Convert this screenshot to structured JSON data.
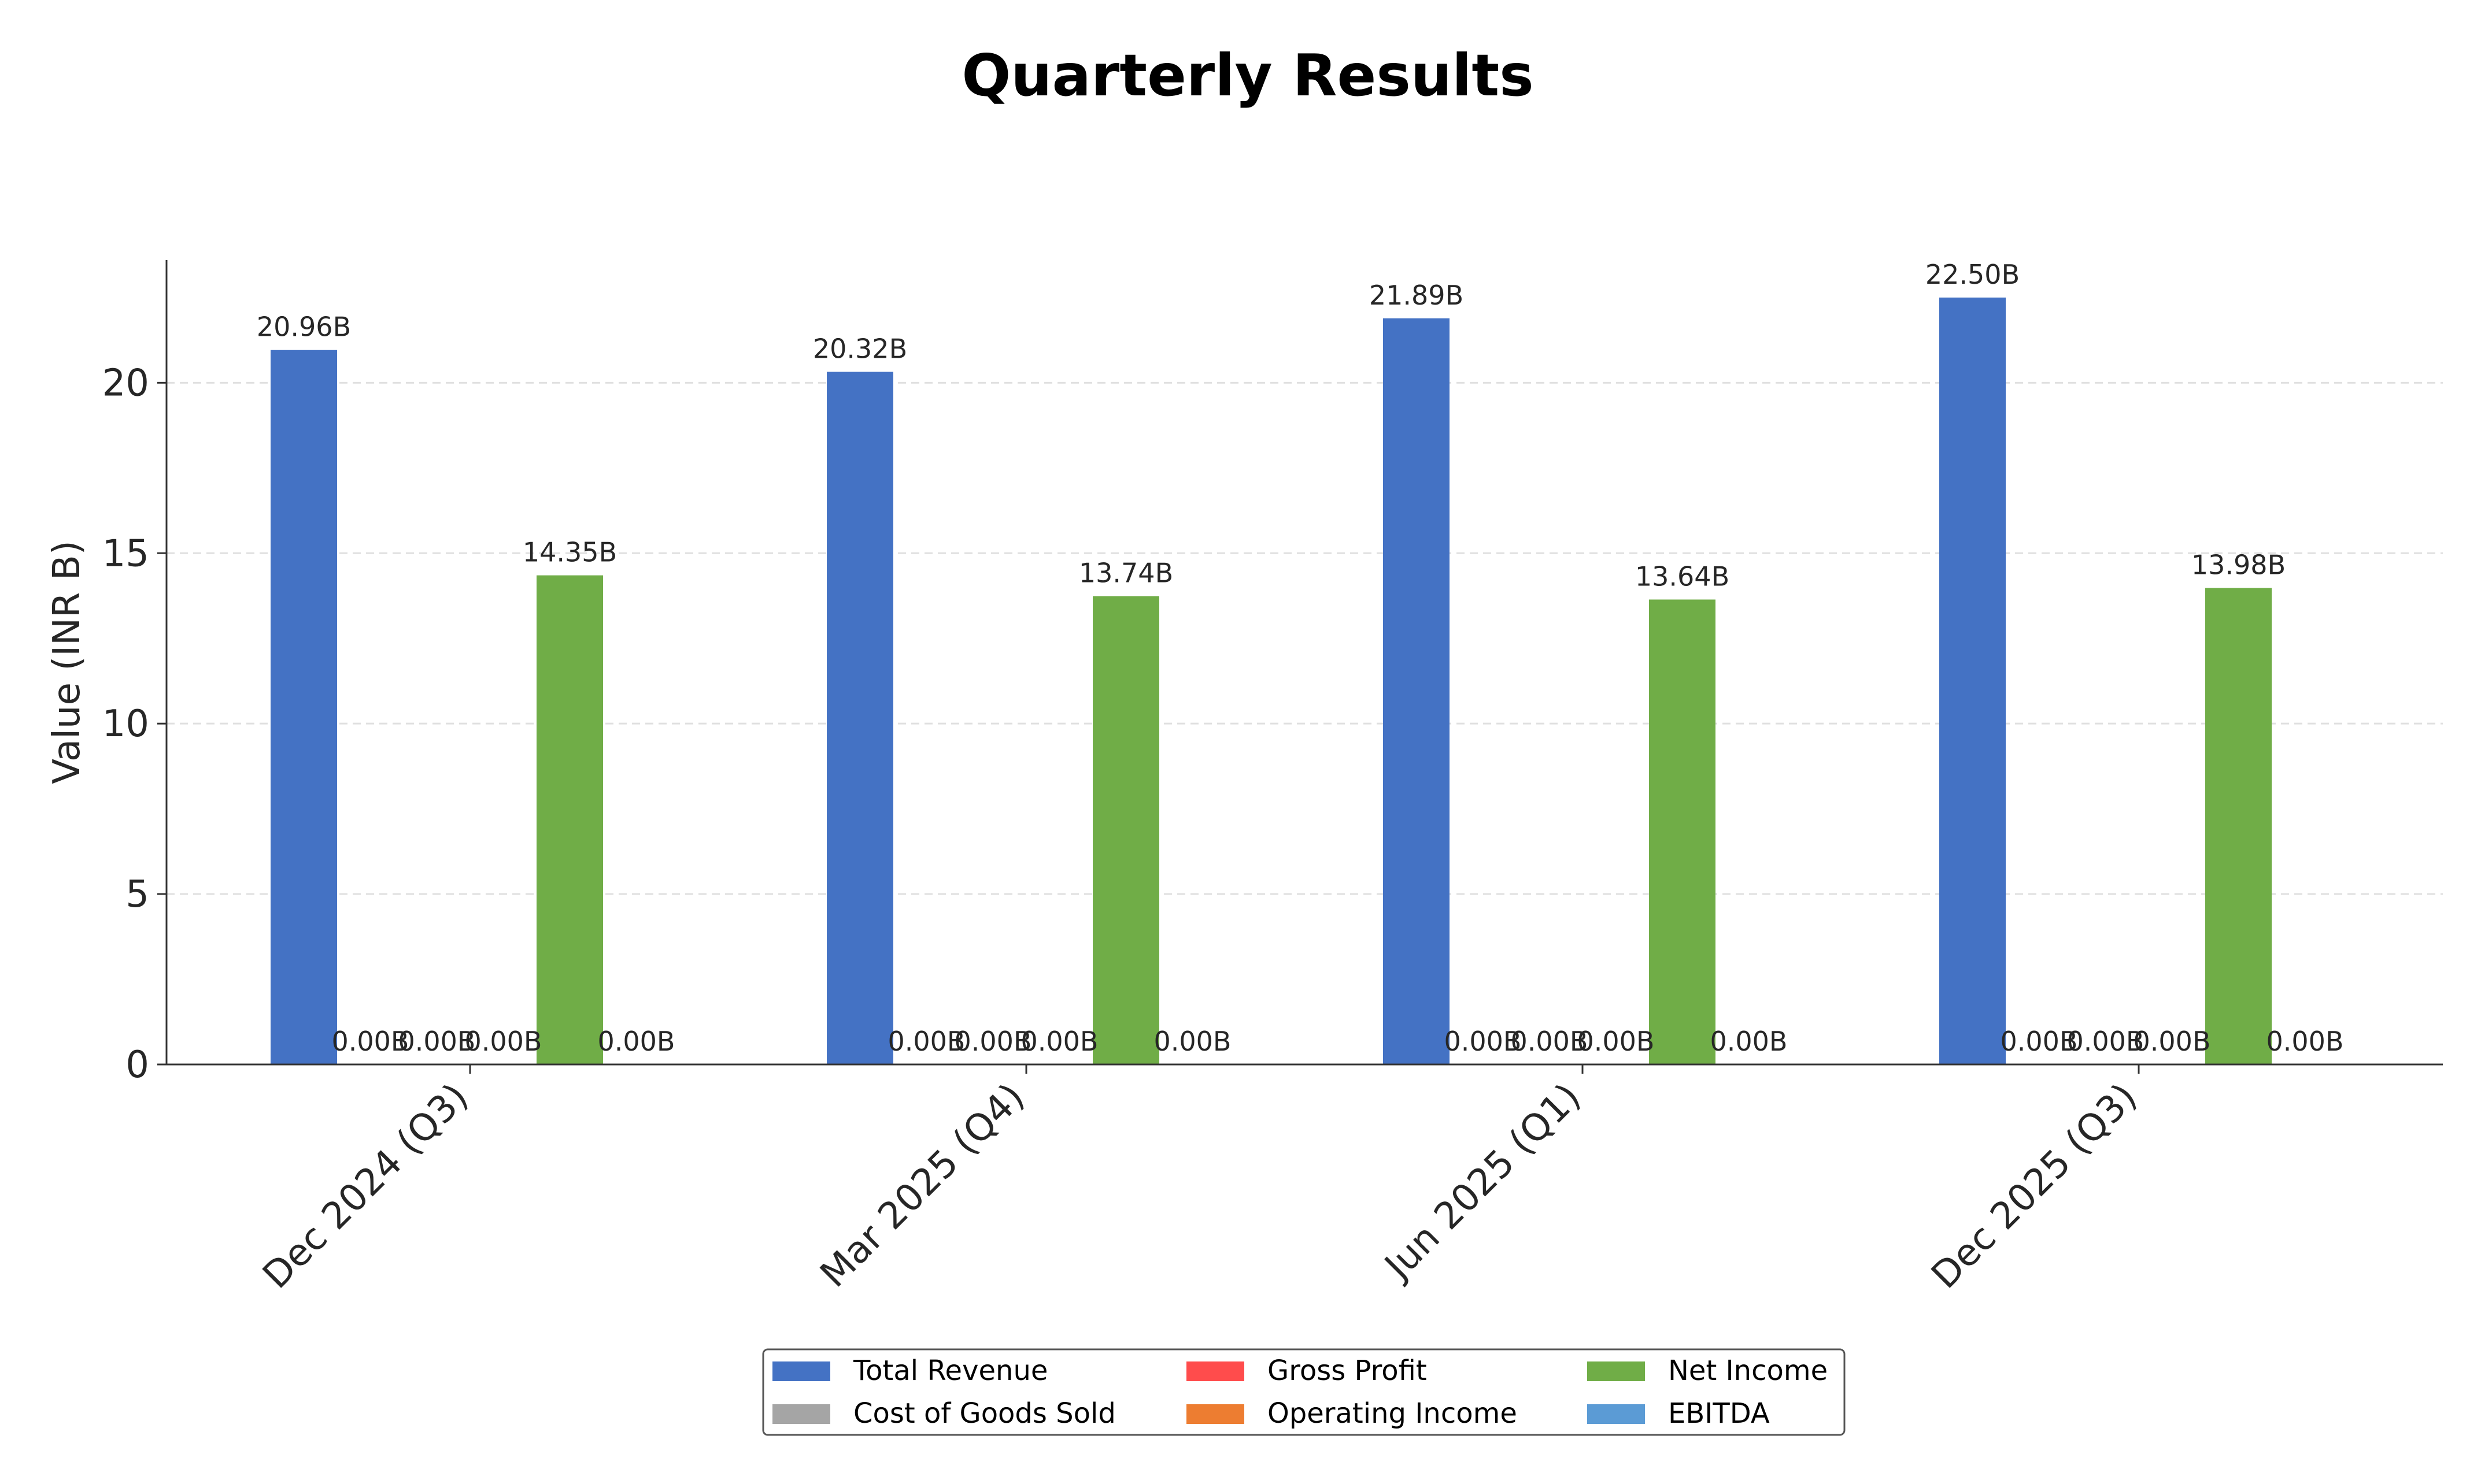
{
  "chart_data": {
    "type": "bar",
    "title": "Quarterly Results",
    "xlabel": "",
    "ylabel": "Value (INR B)",
    "ylim": [
      0,
      23.6
    ],
    "yticks": [
      "0",
      "5",
      "10",
      "15",
      "20"
    ],
    "grid": "horizontal dashed",
    "legend_position": "bottom-center",
    "categories": [
      "Dec 2024 (Q3)",
      "Mar 2025 (Q4)",
      "Jun 2025 (Q1)",
      "Dec 2025 (Q3)"
    ],
    "series": [
      {
        "name": "Total Revenue",
        "color": "#4472c4",
        "values": [
          20.96,
          20.32,
          21.89,
          22.5
        ],
        "labels": [
          "20.96B",
          "20.32B",
          "21.89B",
          "22.50B"
        ]
      },
      {
        "name": "Cost of Goods Sold",
        "color": "#a5a5a5",
        "values": [
          0,
          0,
          0,
          0
        ],
        "labels": [
          "0.00B",
          "0.00B",
          "0.00B",
          "0.00B"
        ]
      },
      {
        "name": "Gross Profit",
        "color": "#ff4c4c",
        "values": [
          0,
          0,
          0,
          0
        ],
        "labels": [
          "0.00B",
          "0.00B",
          "0.00B",
          "0.00B"
        ]
      },
      {
        "name": "Operating Income",
        "color": "#ed7d31",
        "values": [
          0,
          0,
          0,
          0
        ],
        "labels": [
          "0.00B",
          "0.00B",
          "0.00B",
          "0.00B"
        ]
      },
      {
        "name": "Net Income",
        "color": "#70ad47",
        "values": [
          14.35,
          13.74,
          13.64,
          13.98
        ],
        "labels": [
          "14.35B",
          "13.74B",
          "13.64B",
          "13.98B"
        ]
      },
      {
        "name": "EBITDA",
        "color": "#5b9bd5",
        "values": [
          0,
          0,
          0,
          0
        ],
        "labels": [
          "0.00B",
          "0.00B",
          "0.00B",
          "0.00B"
        ]
      }
    ]
  }
}
